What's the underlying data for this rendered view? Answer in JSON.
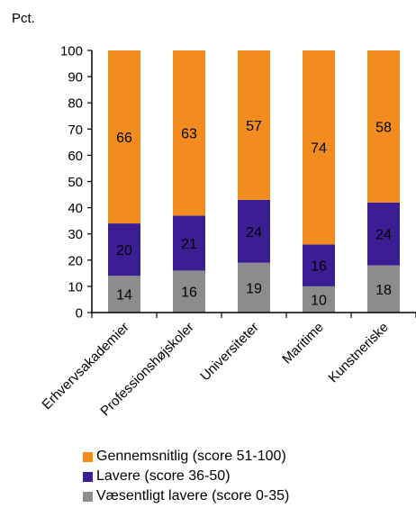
{
  "chart_data": {
    "type": "bar",
    "stacked": true,
    "unit_label": "Pct.",
    "categories": [
      "Erhvervsakademier",
      "Professionshøjskoler",
      "Universiteter",
      "Maritime",
      "Kunstneriske"
    ],
    "series": [
      {
        "name": "Væsentligt lavere (score 0-35)",
        "color": "#8c8c8c",
        "values": [
          14,
          16,
          19,
          10,
          18
        ]
      },
      {
        "name": "Lavere (score 36-50)",
        "color": "#3c1e94",
        "values": [
          20,
          21,
          24,
          16,
          24
        ]
      },
      {
        "name": "Gennemsnitlig (score 51-100)",
        "color": "#f28c1e",
        "values": [
          66,
          63,
          57,
          74,
          58
        ]
      }
    ],
    "ylim": [
      0,
      100
    ],
    "yticks": [
      0,
      10,
      20,
      30,
      40,
      50,
      60,
      70,
      80,
      90,
      100
    ],
    "grid": false,
    "legend_position": "bottom"
  },
  "legend": [
    {
      "label": "Gennemsnitlig (score 51-100)",
      "color": "#f28c1e"
    },
    {
      "label": "Lavere (score 36-50)",
      "color": "#3c1e94"
    },
    {
      "label": "Væsentligt lavere (score 0-35)",
      "color": "#8c8c8c"
    }
  ]
}
